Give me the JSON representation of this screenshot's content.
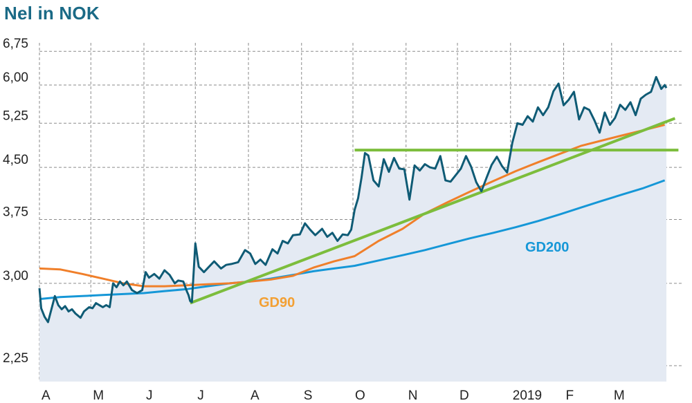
{
  "title": "Nel in NOK",
  "colors": {
    "title": "#1a6a86",
    "price": "#0f5b75",
    "area": "#e4eaf3",
    "gd90": "#f07f2a",
    "gd200": "#1597d7",
    "trend": "#7cbd3c",
    "gd90_label": "#f3a033",
    "gd200_label": "#1597d7",
    "grid": "#8a8a8a"
  },
  "chart_data": {
    "type": "line",
    "title": "Nel in NOK",
    "xlabel": "",
    "ylabel": "",
    "y_scale": "log",
    "ylim": [
      2.1,
      7.3
    ],
    "y_ticks": [
      2.25,
      3.0,
      3.75,
      4.5,
      5.25,
      6.0,
      6.75
    ],
    "y_tick_labels": [
      "2,25",
      "3,00",
      "3,75",
      "4,50",
      "5,25",
      "6,00",
      "6,75"
    ],
    "x_range": [
      "2018-04-01",
      "2019-04-04"
    ],
    "x_ticks": [
      {
        "date": "2018-04-01",
        "label": "A"
      },
      {
        "date": "2018-05-01",
        "label": "M"
      },
      {
        "date": "2018-06-01",
        "label": "J"
      },
      {
        "date": "2018-07-01",
        "label": "J"
      },
      {
        "date": "2018-08-01",
        "label": "A"
      },
      {
        "date": "2018-09-01",
        "label": "S"
      },
      {
        "date": "2018-10-01",
        "label": "O"
      },
      {
        "date": "2018-11-01",
        "label": "N"
      },
      {
        "date": "2018-12-01",
        "label": "D"
      },
      {
        "date": "2019-01-01",
        "label": "2019"
      },
      {
        "date": "2019-02-01",
        "label": "F"
      },
      {
        "date": "2019-03-01",
        "label": "M"
      }
    ],
    "grid": true,
    "series": [
      {
        "name": "",
        "key": "price",
        "x": [
          "2018-04-01",
          "2018-04-02",
          "2018-04-04",
          "2018-04-06",
          "2018-04-08",
          "2018-04-10",
          "2018-04-12",
          "2018-04-14",
          "2018-04-16",
          "2018-04-18",
          "2018-04-20",
          "2018-04-22",
          "2018-04-25",
          "2018-04-27",
          "2018-04-30",
          "2018-05-02",
          "2018-05-04",
          "2018-05-06",
          "2018-05-08",
          "2018-05-10",
          "2018-05-12",
          "2018-05-14",
          "2018-05-16",
          "2018-05-18",
          "2018-05-20",
          "2018-05-22",
          "2018-05-25",
          "2018-05-28",
          "2018-05-31",
          "2018-06-02",
          "2018-06-04",
          "2018-06-07",
          "2018-06-10",
          "2018-06-13",
          "2018-06-16",
          "2018-06-19",
          "2018-06-21",
          "2018-06-24",
          "2018-06-26",
          "2018-06-27",
          "2018-06-28",
          "2018-06-29",
          "2018-07-01",
          "2018-07-03",
          "2018-07-06",
          "2018-07-09",
          "2018-07-12",
          "2018-07-16",
          "2018-07-19",
          "2018-07-22",
          "2018-07-26",
          "2018-07-30",
          "2018-08-02",
          "2018-08-05",
          "2018-08-08",
          "2018-08-11",
          "2018-08-15",
          "2018-08-18",
          "2018-08-21",
          "2018-08-24",
          "2018-08-27",
          "2018-08-31",
          "2018-09-03",
          "2018-09-06",
          "2018-09-09",
          "2018-09-13",
          "2018-09-16",
          "2018-09-19",
          "2018-09-22",
          "2018-09-25",
          "2018-09-28",
          "2018-09-30",
          "2018-10-02",
          "2018-10-04",
          "2018-10-06",
          "2018-10-08",
          "2018-10-10",
          "2018-10-13",
          "2018-10-16",
          "2018-10-19",
          "2018-10-22",
          "2018-10-25",
          "2018-10-28",
          "2018-10-31",
          "2018-11-03",
          "2018-11-06",
          "2018-11-09",
          "2018-11-12",
          "2018-11-15",
          "2018-11-18",
          "2018-11-21",
          "2018-11-24",
          "2018-11-27",
          "2018-11-30",
          "2018-12-03",
          "2018-12-06",
          "2018-12-09",
          "2018-12-12",
          "2018-12-15",
          "2018-12-18",
          "2018-12-21",
          "2018-12-24",
          "2018-12-27",
          "2018-12-30",
          "2019-01-02",
          "2019-01-05",
          "2019-01-08",
          "2019-01-11",
          "2019-01-14",
          "2019-01-17",
          "2019-01-20",
          "2019-01-23",
          "2019-01-26",
          "2019-01-29",
          "2019-02-01",
          "2019-02-04",
          "2019-02-07",
          "2019-02-10",
          "2019-02-13",
          "2019-02-16",
          "2019-02-19",
          "2019-02-22",
          "2019-02-25",
          "2019-02-28",
          "2019-03-03",
          "2019-03-06",
          "2019-03-09",
          "2019-03-12",
          "2019-03-15",
          "2019-03-18",
          "2019-03-21",
          "2019-03-24",
          "2019-03-27",
          "2019-03-30",
          "2019-04-01",
          "2019-04-02"
        ],
        "values": [
          2.95,
          2.75,
          2.67,
          2.62,
          2.74,
          2.87,
          2.78,
          2.74,
          2.77,
          2.72,
          2.74,
          2.7,
          2.66,
          2.72,
          2.76,
          2.75,
          2.8,
          2.78,
          2.76,
          2.78,
          2.76,
          3.0,
          2.96,
          3.02,
          2.98,
          3.02,
          2.93,
          2.9,
          2.93,
          3.12,
          3.06,
          3.1,
          3.05,
          3.14,
          3.09,
          3.0,
          3.03,
          3.02,
          2.92,
          2.88,
          2.82,
          2.81,
          3.45,
          3.18,
          3.12,
          3.18,
          3.24,
          3.16,
          3.2,
          3.21,
          3.23,
          3.37,
          3.33,
          3.21,
          3.26,
          3.2,
          3.38,
          3.33,
          3.48,
          3.45,
          3.55,
          3.56,
          3.7,
          3.62,
          3.55,
          3.63,
          3.53,
          3.58,
          3.48,
          3.56,
          3.55,
          3.62,
          3.88,
          4.04,
          4.34,
          4.73,
          4.69,
          4.3,
          4.21,
          4.63,
          4.43,
          4.65,
          4.48,
          4.47,
          4.02,
          4.53,
          4.45,
          4.55,
          4.5,
          4.48,
          4.68,
          4.3,
          4.28,
          4.38,
          4.48,
          4.68,
          4.51,
          4.27,
          4.14,
          4.34,
          4.54,
          4.67,
          4.52,
          4.42,
          4.9,
          5.25,
          5.22,
          5.38,
          5.28,
          5.55,
          5.4,
          5.55,
          5.87,
          6.03,
          5.59,
          5.7,
          5.86,
          5.32,
          5.55,
          5.5,
          5.3,
          5.08,
          5.45,
          5.22,
          5.35,
          5.6,
          5.5,
          5.65,
          5.4,
          5.72,
          5.8,
          5.86,
          6.17,
          5.92,
          6.0,
          5.94
        ]
      },
      {
        "name": "GD90",
        "key": "gd90",
        "x": [
          "2018-04-01",
          "2018-04-13",
          "2018-04-26",
          "2018-05-08",
          "2018-05-20",
          "2018-06-01",
          "2018-06-13",
          "2018-06-26",
          "2018-07-08",
          "2018-07-21",
          "2018-08-02",
          "2018-08-14",
          "2018-08-27",
          "2018-09-08",
          "2018-09-20",
          "2018-10-02",
          "2018-10-16",
          "2018-10-30",
          "2018-11-12",
          "2018-11-25",
          "2018-12-08",
          "2018-12-22",
          "2019-01-04",
          "2019-01-17",
          "2019-01-30",
          "2019-02-11",
          "2019-02-23",
          "2019-03-07",
          "2019-03-19",
          "2019-04-01"
        ],
        "values": [
          3.16,
          3.15,
          3.1,
          3.05,
          3.0,
          2.97,
          2.97,
          2.98,
          2.99,
          3.0,
          3.02,
          3.04,
          3.08,
          3.17,
          3.24,
          3.3,
          3.48,
          3.63,
          3.83,
          3.98,
          4.13,
          4.29,
          4.44,
          4.58,
          4.72,
          4.85,
          4.94,
          5.03,
          5.12,
          5.22
        ]
      },
      {
        "name": "GD200",
        "key": "gd200",
        "x": [
          "2018-04-01",
          "2018-04-13",
          "2018-04-26",
          "2018-05-08",
          "2018-05-20",
          "2018-06-01",
          "2018-06-13",
          "2018-06-26",
          "2018-07-08",
          "2018-07-21",
          "2018-08-02",
          "2018-08-14",
          "2018-08-27",
          "2018-09-08",
          "2018-09-20",
          "2018-10-02",
          "2018-10-16",
          "2018-10-30",
          "2018-11-12",
          "2018-11-25",
          "2018-12-08",
          "2018-12-22",
          "2019-01-04",
          "2019-01-17",
          "2019-01-30",
          "2019-02-11",
          "2019-02-23",
          "2019-03-07",
          "2019-03-19",
          "2019-04-01"
        ],
        "values": [
          2.84,
          2.86,
          2.87,
          2.88,
          2.89,
          2.9,
          2.92,
          2.94,
          2.97,
          3.0,
          3.02,
          3.05,
          3.09,
          3.13,
          3.16,
          3.19,
          3.25,
          3.31,
          3.37,
          3.44,
          3.51,
          3.58,
          3.65,
          3.73,
          3.82,
          3.91,
          4.0,
          4.09,
          4.18,
          4.3
        ]
      },
      {
        "name": "",
        "key": "trend_up",
        "x": [
          "2018-06-28",
          "2019-04-07"
        ],
        "values": [
          2.8,
          5.34
        ]
      },
      {
        "name": "",
        "key": "resistance",
        "x": [
          "2018-10-02",
          "2019-04-09"
        ],
        "values": [
          4.78,
          4.78
        ]
      }
    ],
    "annotations": [
      {
        "text": "GD90",
        "series": "gd90"
      },
      {
        "text": "GD200",
        "series": "gd200"
      }
    ]
  }
}
